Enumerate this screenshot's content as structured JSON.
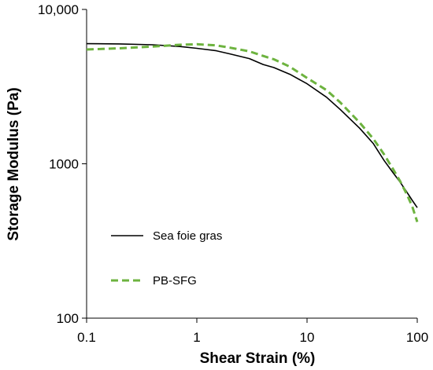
{
  "chart_data": {
    "type": "line",
    "xlabel": "Shear Strain (%)",
    "ylabel": "Storage Modulus (Pa)",
    "xscale": "log",
    "yscale": "log",
    "xlim": [
      0.1,
      100
    ],
    "ylim": [
      100,
      10000
    ],
    "xticks": [
      {
        "value": 0.1,
        "label": "0.1"
      },
      {
        "value": 1,
        "label": "1"
      },
      {
        "value": 10,
        "label": "10"
      },
      {
        "value": 100,
        "label": "100"
      }
    ],
    "yticks": [
      {
        "value": 100,
        "label": "100"
      },
      {
        "value": 1000,
        "label": "1000"
      },
      {
        "value": 10000,
        "label": "10,000"
      }
    ],
    "grid": false,
    "legend_position": "lower-left",
    "series": [
      {
        "name": "Sea foie gras",
        "color": "#000000",
        "style": "solid",
        "points": [
          [
            0.1,
            6000
          ],
          [
            0.2,
            5980
          ],
          [
            0.4,
            5900
          ],
          [
            0.7,
            5750
          ],
          [
            1,
            5600
          ],
          [
            1.5,
            5400
          ],
          [
            2,
            5150
          ],
          [
            3,
            4800
          ],
          [
            4,
            4400
          ],
          [
            5,
            4200
          ],
          [
            7,
            3800
          ],
          [
            10,
            3300
          ],
          [
            15,
            2700
          ],
          [
            20,
            2250
          ],
          [
            30,
            1700
          ],
          [
            40,
            1350
          ],
          [
            50,
            1050
          ],
          [
            60,
            880
          ],
          [
            70,
            760
          ],
          [
            80,
            660
          ],
          [
            90,
            580
          ],
          [
            100,
            520
          ]
        ]
      },
      {
        "name": "PB-SFG",
        "color": "#6db33f",
        "style": "dashed",
        "points": [
          [
            0.1,
            5500
          ],
          [
            0.2,
            5600
          ],
          [
            0.4,
            5750
          ],
          [
            0.7,
            5900
          ],
          [
            1,
            5950
          ],
          [
            1.5,
            5850
          ],
          [
            2,
            5650
          ],
          [
            3,
            5350
          ],
          [
            4,
            5000
          ],
          [
            5,
            4750
          ],
          [
            7,
            4250
          ],
          [
            10,
            3600
          ],
          [
            15,
            3000
          ],
          [
            20,
            2500
          ],
          [
            30,
            1850
          ],
          [
            40,
            1450
          ],
          [
            50,
            1150
          ],
          [
            60,
            930
          ],
          [
            70,
            770
          ],
          [
            80,
            640
          ],
          [
            90,
            530
          ],
          [
            100,
            420
          ]
        ]
      }
    ]
  }
}
